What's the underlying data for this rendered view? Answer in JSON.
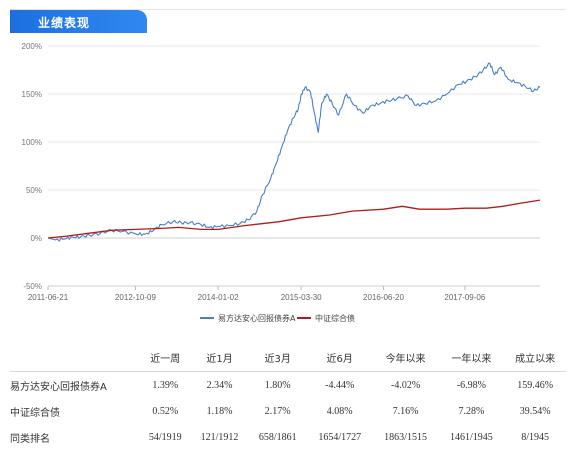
{
  "section_title": "业绩表现",
  "chart_data": {
    "type": "line",
    "title": "",
    "xlabel": "",
    "ylabel": "",
    "ylim": [
      -50,
      200
    ],
    "y_ticks": [
      -50,
      0,
      50,
      100,
      150,
      200
    ],
    "y_tick_labels": [
      "-50%",
      "0%",
      "50%",
      "100%",
      "150%",
      "200%"
    ],
    "x_ticks": [
      "2011-06-21",
      "2012-10-09",
      "2014-01-02",
      "2015-03-30",
      "2016-06-20",
      "2017-09-06"
    ],
    "x_range": [
      "2011-06-21",
      "2018-10-20"
    ],
    "grid": "horizontal",
    "legend_position": "bottom",
    "series": [
      {
        "name": "易方达安心回报债券A",
        "color": "#4a7fc8",
        "points": [
          [
            "2011-06-21",
            0
          ],
          [
            "2011-08-01",
            -2
          ],
          [
            "2011-09-20",
            -1
          ],
          [
            "2011-11-01",
            1
          ],
          [
            "2011-12-15",
            1
          ],
          [
            "2012-02-01",
            3
          ],
          [
            "2012-04-01",
            5
          ],
          [
            "2012-06-01",
            8
          ],
          [
            "2012-08-01",
            7
          ],
          [
            "2012-10-15",
            4
          ],
          [
            "2012-12-01",
            4
          ],
          [
            "2013-01-15",
            8
          ],
          [
            "2013-03-01",
            14
          ],
          [
            "2013-05-01",
            17
          ],
          [
            "2013-06-15",
            16
          ],
          [
            "2013-08-01",
            16
          ],
          [
            "2013-10-01",
            14
          ],
          [
            "2013-11-15",
            11
          ],
          [
            "2014-01-01",
            12
          ],
          [
            "2014-03-01",
            13
          ],
          [
            "2014-05-01",
            15
          ],
          [
            "2014-06-15",
            19
          ],
          [
            "2014-08-01",
            28
          ],
          [
            "2014-09-01",
            45
          ],
          [
            "2014-10-15",
            62
          ],
          [
            "2014-11-15",
            78
          ],
          [
            "2014-12-15",
            95
          ],
          [
            "2015-01-15",
            112
          ],
          [
            "2015-02-15",
            125
          ],
          [
            "2015-03-15",
            135
          ],
          [
            "2015-04-01",
            150
          ],
          [
            "2015-04-20",
            157
          ],
          [
            "2015-05-20",
            152
          ],
          [
            "2015-06-10",
            130
          ],
          [
            "2015-07-01",
            110
          ],
          [
            "2015-07-20",
            140
          ],
          [
            "2015-08-15",
            150
          ],
          [
            "2015-09-15",
            140
          ],
          [
            "2015-10-20",
            128
          ],
          [
            "2015-12-01",
            150
          ],
          [
            "2016-01-15",
            138
          ],
          [
            "2016-03-01",
            130
          ],
          [
            "2016-04-15",
            138
          ],
          [
            "2016-06-01",
            140
          ],
          [
            "2016-07-15",
            143
          ],
          [
            "2016-09-01",
            145
          ],
          [
            "2016-11-01",
            148
          ],
          [
            "2016-12-15",
            138
          ],
          [
            "2017-02-01",
            140
          ],
          [
            "2017-04-01",
            143
          ],
          [
            "2017-06-01",
            150
          ],
          [
            "2017-08-01",
            160
          ],
          [
            "2017-09-15",
            163
          ],
          [
            "2017-11-01",
            168
          ],
          [
            "2017-12-15",
            175
          ],
          [
            "2018-01-20",
            182
          ],
          [
            "2018-02-15",
            170
          ],
          [
            "2018-03-20",
            178
          ],
          [
            "2018-05-01",
            165
          ],
          [
            "2018-06-15",
            162
          ],
          [
            "2018-08-01",
            158
          ],
          [
            "2018-09-15",
            153
          ],
          [
            "2018-10-20",
            157
          ]
        ]
      },
      {
        "name": "中证综合债",
        "color": "#b01c1c",
        "points": [
          [
            "2011-06-21",
            0
          ],
          [
            "2011-10-01",
            2
          ],
          [
            "2012-02-01",
            5
          ],
          [
            "2012-06-01",
            8
          ],
          [
            "2012-10-09",
            9
          ],
          [
            "2013-03-01",
            10
          ],
          [
            "2013-06-01",
            11
          ],
          [
            "2013-10-01",
            9
          ],
          [
            "2014-01-02",
            9
          ],
          [
            "2014-06-01",
            13
          ],
          [
            "2014-12-01",
            17
          ],
          [
            "2015-03-30",
            21
          ],
          [
            "2015-09-01",
            24
          ],
          [
            "2016-01-01",
            28
          ],
          [
            "2016-06-20",
            30
          ],
          [
            "2016-10-01",
            33
          ],
          [
            "2017-01-01",
            30
          ],
          [
            "2017-06-01",
            30
          ],
          [
            "2017-09-06",
            31
          ],
          [
            "2018-01-01",
            31
          ],
          [
            "2018-04-01",
            33
          ],
          [
            "2018-07-01",
            36
          ],
          [
            "2018-10-20",
            39.5
          ]
        ]
      }
    ]
  },
  "table": {
    "headers": [
      "",
      "近一周",
      "近1月",
      "近3月",
      "近6月",
      "今年以来",
      "一年以来",
      "成立以来"
    ],
    "rows": [
      {
        "name": "易方达安心回报债券A",
        "cells": [
          {
            "text": "1.39%",
            "tone": "pos"
          },
          {
            "text": "2.34%",
            "tone": "pos"
          },
          {
            "text": "1.80%",
            "tone": "pos"
          },
          {
            "text": "-4.44%",
            "tone": "neg"
          },
          {
            "text": "-4.02%",
            "tone": "neg"
          },
          {
            "text": "-6.98%",
            "tone": "neg"
          },
          {
            "text": "159.46%",
            "tone": "pos"
          }
        ]
      },
      {
        "name": "中证综合债",
        "cells": [
          {
            "text": "0.52%",
            "tone": "pos"
          },
          {
            "text": "1.18%",
            "tone": "pos"
          },
          {
            "text": "2.17%",
            "tone": "pos"
          },
          {
            "text": "4.08%",
            "tone": "pos"
          },
          {
            "text": "7.16%",
            "tone": "pos"
          },
          {
            "text": "7.28%",
            "tone": "pos"
          },
          {
            "text": "39.54%",
            "tone": "pos"
          }
        ]
      },
      {
        "name": "同类排名",
        "cells": [
          {
            "text": "54/1919",
            "tone": "neu"
          },
          {
            "text": "121/1912",
            "tone": "neu"
          },
          {
            "text": "658/1861",
            "tone": "neu"
          },
          {
            "text": "1654/1727",
            "tone": "neu"
          },
          {
            "text": "1863/1515",
            "tone": "neu"
          },
          {
            "text": "1461/1945",
            "tone": "neu"
          },
          {
            "text": "8/1945",
            "tone": "neu"
          }
        ]
      }
    ]
  }
}
